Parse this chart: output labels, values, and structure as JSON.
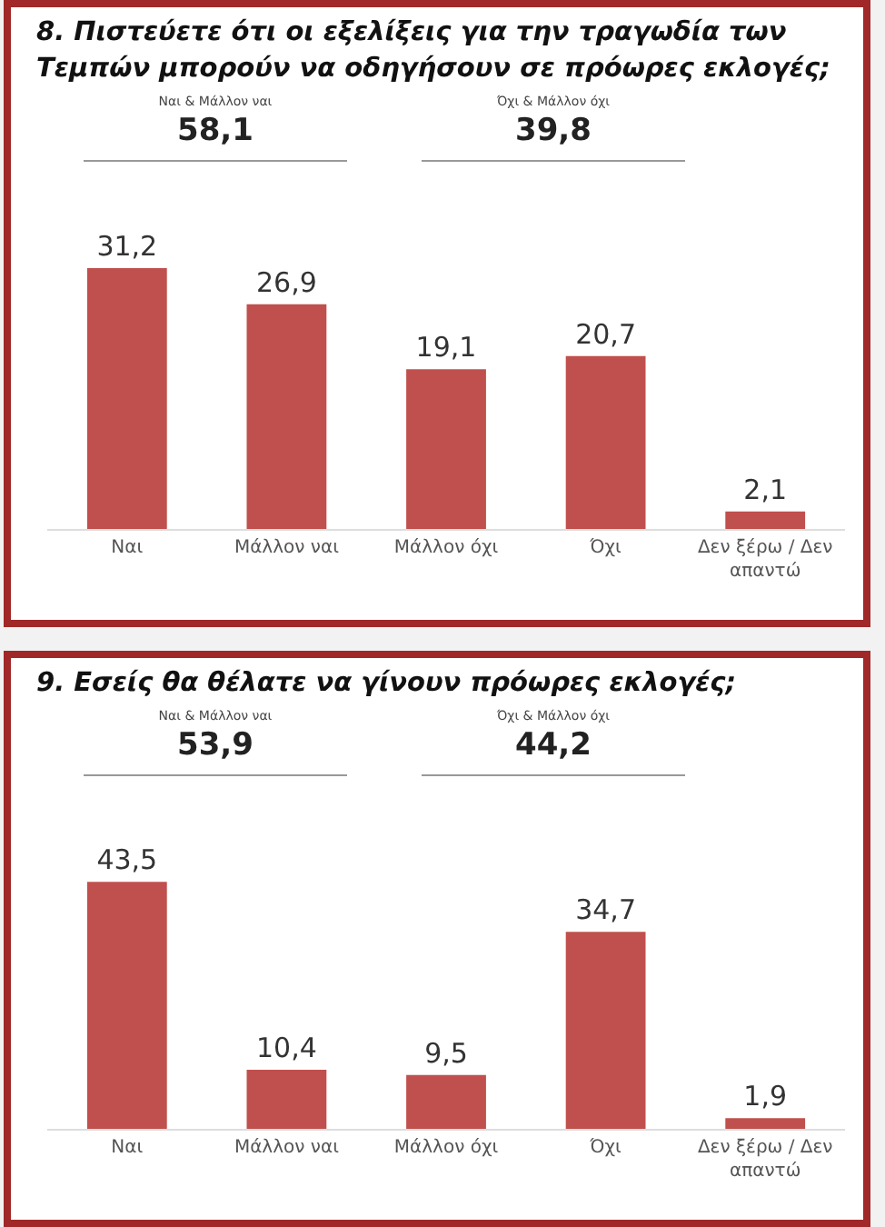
{
  "chart_data": [
    {
      "type": "bar",
      "title": "8. Πιστεύετε ότι οι εξελίξεις για την τραγωδία των Τεμπών μπορούν να οδηγήσουν σε πρόωρες εκλογές;",
      "annotations": [
        "Ναι & Μάλλον ναι",
        "58,1",
        "Όχι & Μάλλον όχι",
        "39,8"
      ],
      "categories": [
        "Ναι",
        "Μάλλον ναι",
        "Μάλλον όχι",
        "Όχι",
        "Δεν ξέρω / Δεν απαντώ"
      ],
      "values": [
        31.2,
        26.9,
        19.1,
        20.7,
        2.1
      ],
      "value_labels": [
        "31,2",
        "26,9",
        "19,1",
        "20,7",
        "2,1"
      ],
      "color": "#c0504d"
    },
    {
      "type": "bar",
      "title": "9. Εσείς θα θέλατε να γίνουν πρόωρες εκλογές;",
      "annotations": [
        "Ναι & Μάλλον ναι",
        "53,9",
        "Όχι & Μάλλον όχι",
        "44,2"
      ],
      "categories": [
        "Ναι",
        "Μάλλον ναι",
        "Μάλλον όχι",
        "Όχι",
        "Δεν ξέρω / Δεν απαντώ"
      ],
      "values": [
        43.5,
        10.4,
        9.5,
        34.7,
        1.9
      ],
      "value_labels": [
        "43,5",
        "10,4",
        "9,5",
        "34,7",
        "1,9"
      ],
      "color": "#c0504d"
    }
  ]
}
